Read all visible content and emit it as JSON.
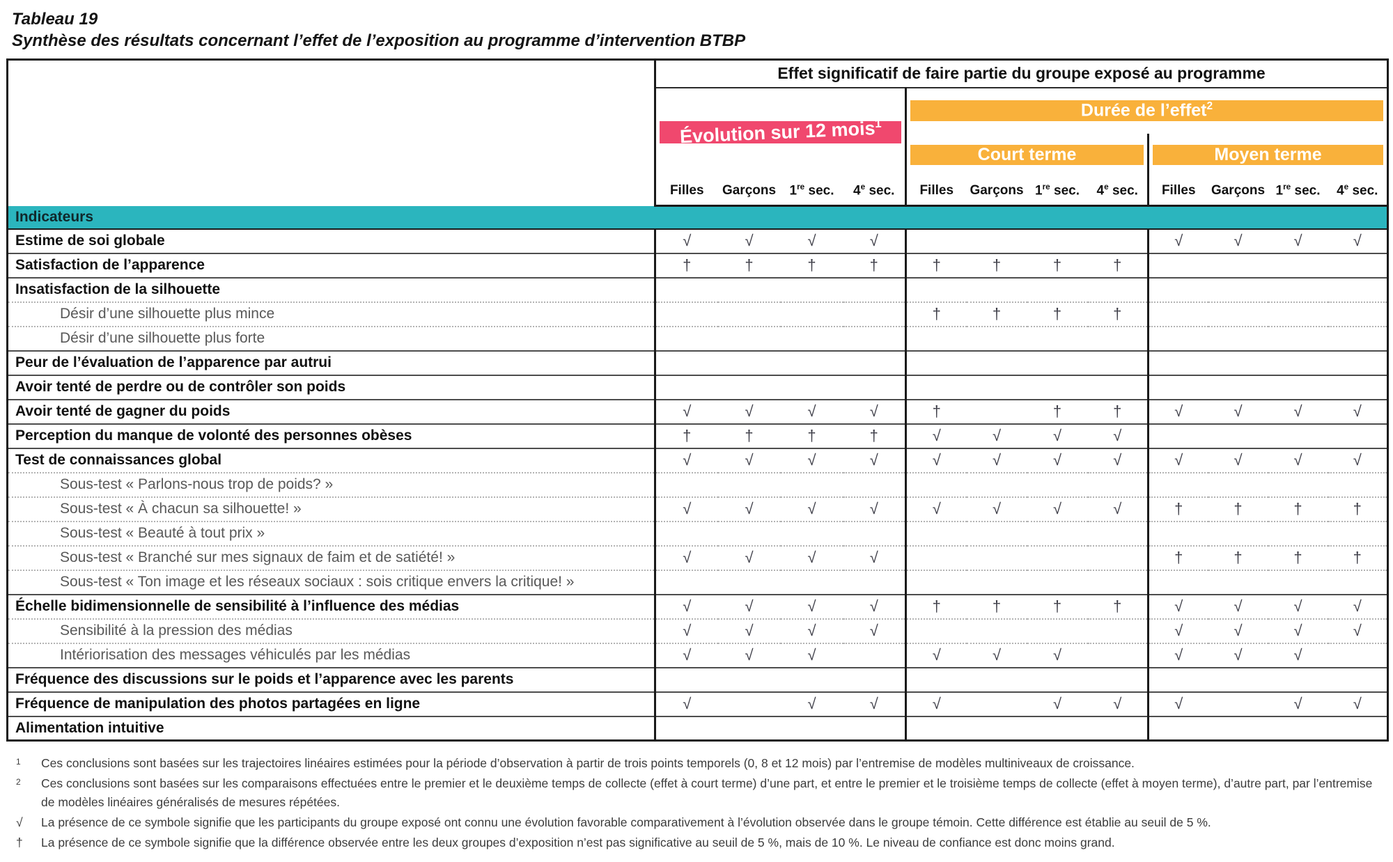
{
  "colors": {
    "pink": "#F0486E",
    "orange": "#F9B13B",
    "teal": "#2BB5BE"
  },
  "title": {
    "line1": "Tableau 19",
    "line2": "Synthèse des résultats concernant l’effet de l’exposition au programme d’intervention BTBP"
  },
  "table": {
    "top_header": "Effet significatif de faire partie du groupe exposé au programme",
    "group_evolution": {
      "label": "Évolution sur 12 mois",
      "sup": "1"
    },
    "group_duration": {
      "label": "Durée de l’effet",
      "sup": "2"
    },
    "subgroup_short": "Court terme",
    "subgroup_medium": "Moyen terme",
    "col_headers": [
      {
        "pre": "Filles"
      },
      {
        "pre": "Garçons"
      },
      {
        "pre": "1",
        "sup": "re",
        "post": " sec."
      },
      {
        "pre": "4",
        "sup": "e",
        "post": " sec."
      }
    ],
    "section_header": "Indicateurs",
    "check_symbol": "√",
    "dagger_symbol": "†",
    "rows": [
      {
        "label": "Estime de soi globale",
        "indent": false,
        "dotted": false,
        "cells": [
          "√",
          "√",
          "√",
          "√",
          "",
          "",
          "",
          "",
          "√",
          "√",
          "√",
          "√"
        ]
      },
      {
        "label": "Satisfaction de l’apparence",
        "indent": false,
        "dotted": false,
        "cells": [
          "†",
          "†",
          "†",
          "†",
          "†",
          "†",
          "†",
          "†",
          "",
          "",
          "",
          ""
        ]
      },
      {
        "label": "Insatisfaction de la silhouette",
        "indent": false,
        "dotted": false,
        "cells": [
          "",
          "",
          "",
          "",
          "",
          "",
          "",
          "",
          "",
          "",
          "",
          ""
        ]
      },
      {
        "label": "Désir d’une silhouette plus mince",
        "indent": true,
        "dotted": true,
        "cells": [
          "",
          "",
          "",
          "",
          "†",
          "†",
          "†",
          "†",
          "",
          "",
          "",
          ""
        ]
      },
      {
        "label": "Désir d’une silhouette plus forte",
        "indent": true,
        "dotted": true,
        "cells": [
          "",
          "",
          "",
          "",
          "",
          "",
          "",
          "",
          "",
          "",
          "",
          ""
        ]
      },
      {
        "label": "Peur de l’évaluation de l’apparence par autrui",
        "indent": false,
        "dotted": false,
        "cells": [
          "",
          "",
          "",
          "",
          "",
          "",
          "",
          "",
          "",
          "",
          "",
          ""
        ]
      },
      {
        "label": "Avoir tenté de perdre ou de contrôler son poids",
        "indent": false,
        "dotted": false,
        "cells": [
          "",
          "",
          "",
          "",
          "",
          "",
          "",
          "",
          "",
          "",
          "",
          ""
        ]
      },
      {
        "label": "Avoir tenté de gagner du poids",
        "indent": false,
        "dotted": false,
        "cells": [
          "√",
          "√",
          "√",
          "√",
          "†",
          "",
          "†",
          "†",
          "√",
          "√",
          "√",
          "√"
        ]
      },
      {
        "label": "Perception du manque de volonté des personnes obèses",
        "indent": false,
        "dotted": false,
        "cells": [
          "†",
          "†",
          "†",
          "†",
          "√",
          "√",
          "√",
          "√",
          "",
          "",
          "",
          ""
        ]
      },
      {
        "label": "Test de connaissances global",
        "indent": false,
        "dotted": false,
        "cells": [
          "√",
          "√",
          "√",
          "√",
          "√",
          "√",
          "√",
          "√",
          "√",
          "√",
          "√",
          "√"
        ]
      },
      {
        "label": "Sous-test « Parlons-nous trop de poids? »",
        "indent": true,
        "dotted": true,
        "cells": [
          "",
          "",
          "",
          "",
          "",
          "",
          "",
          "",
          "",
          "",
          "",
          ""
        ]
      },
      {
        "label": "Sous-test «  À chacun sa silhouette! »",
        "indent": true,
        "dotted": true,
        "cells": [
          "√",
          "√",
          "√",
          "√",
          "√",
          "√",
          "√",
          "√",
          "†",
          "†",
          "†",
          "†"
        ]
      },
      {
        "label": "Sous-test « Beauté à tout prix »",
        "indent": true,
        "dotted": true,
        "cells": [
          "",
          "",
          "",
          "",
          "",
          "",
          "",
          "",
          "",
          "",
          "",
          ""
        ]
      },
      {
        "label": "Sous-test « Branché sur mes signaux de faim et de satiété! »",
        "indent": true,
        "dotted": true,
        "cells": [
          "√",
          "√",
          "√",
          "√",
          "",
          "",
          "",
          "",
          "†",
          "†",
          "†",
          "†"
        ]
      },
      {
        "label": "Sous-test « Ton image et les réseaux sociaux : sois critique envers la critique! »",
        "indent": true,
        "dotted": true,
        "cells": [
          "",
          "",
          "",
          "",
          "",
          "",
          "",
          "",
          "",
          "",
          "",
          ""
        ]
      },
      {
        "label": "Échelle bidimensionnelle de sensibilité à l’influence des médias",
        "indent": false,
        "dotted": false,
        "cells": [
          "√",
          "√",
          "√",
          "√",
          "†",
          "†",
          "†",
          "†",
          "√",
          "√",
          "√",
          "√"
        ]
      },
      {
        "label": "Sensibilité à la pression des médias",
        "indent": true,
        "dotted": true,
        "cells": [
          "√",
          "√",
          "√",
          "√",
          "",
          "",
          "",
          "",
          "√",
          "√",
          "√",
          "√"
        ]
      },
      {
        "label": "Intériorisation des messages véhiculés par les médias",
        "indent": true,
        "dotted": true,
        "cells": [
          "√",
          "√",
          "√",
          "",
          "√",
          "√",
          "√",
          "",
          "√",
          "√",
          "√",
          ""
        ]
      },
      {
        "label": "Fréquence des discussions sur le poids et l’apparence avec les parents",
        "indent": false,
        "dotted": false,
        "cells": [
          "",
          "",
          "",
          "",
          "",
          "",
          "",
          "",
          "",
          "",
          "",
          ""
        ]
      },
      {
        "label": "Fréquence de manipulation des photos partagées en ligne",
        "indent": false,
        "dotted": false,
        "cells": [
          "√",
          "",
          "√",
          "√",
          "√",
          "",
          "√",
          "√",
          "√",
          "",
          "√",
          "√"
        ]
      },
      {
        "label": "Alimentation intuitive",
        "indent": false,
        "dotted": false,
        "cells": [
          "",
          "",
          "",
          "",
          "",
          "",
          "",
          "",
          "",
          "",
          "",
          ""
        ]
      }
    ]
  },
  "footnotes": [
    {
      "marker": "1",
      "sup": true,
      "text": "Ces conclusions sont basées sur les trajectoires linéaires estimées pour la période d’observation à partir de trois points temporels (0, 8 et 12 mois) par l’entremise de modèles multiniveaux de croissance."
    },
    {
      "marker": "2",
      "sup": true,
      "text": "Ces conclusions sont basées sur les comparaisons effectuées entre le premier et le deuxième temps de collecte (effet à court terme) d’une part, et entre le premier et le troisième temps de collecte (effet à moyen terme), d’autre part, par l’entremise de modèles linéaires généralisés de mesures répétées."
    },
    {
      "marker": "√",
      "sup": false,
      "text": "La présence de ce symbole signifie que les participants du groupe exposé ont connu une évolution favorable comparativement à l’évolution observée dans le groupe témoin. Cette différence est établie au seuil de 5 %."
    },
    {
      "marker": "†",
      "sup": false,
      "text": "La présence de ce symbole signifie que la différence observée entre les deux groupes d’exposition n’est pas significative au seuil de 5 %, mais de 10 %. Le niveau de confiance est donc moins grand."
    }
  ]
}
